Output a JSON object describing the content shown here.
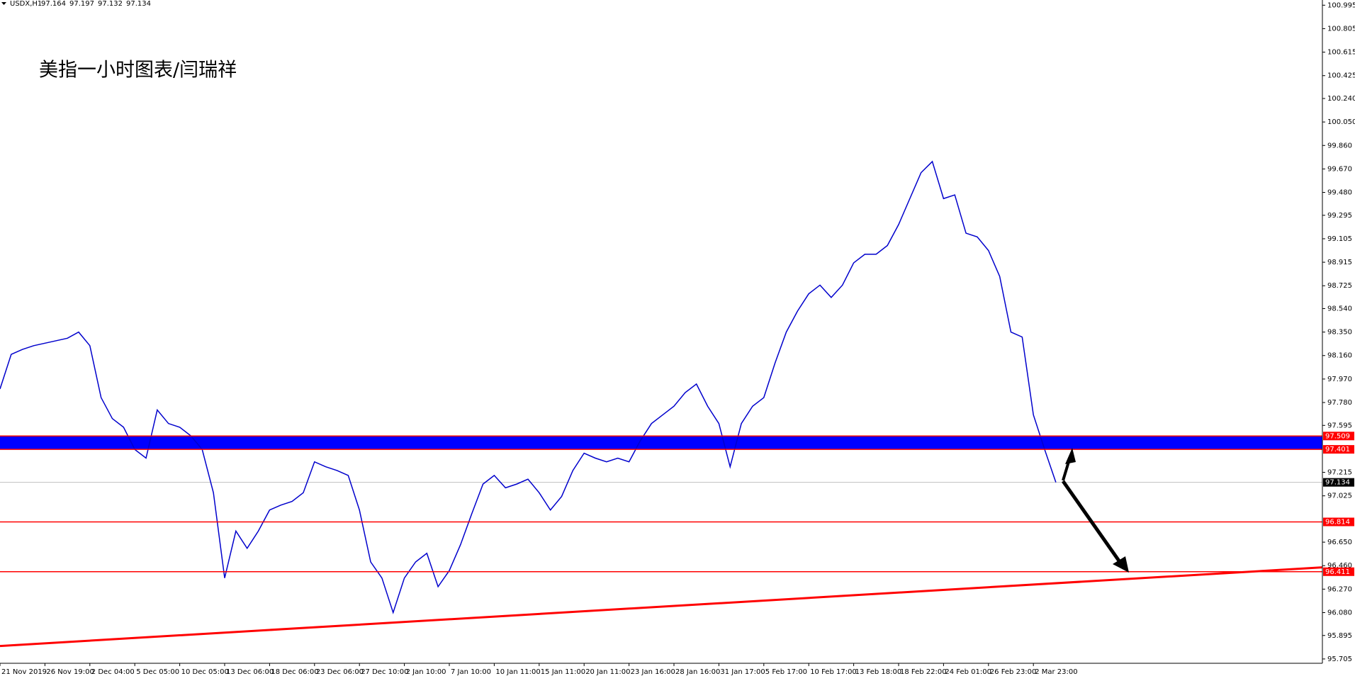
{
  "chart_data": {
    "type": "line",
    "symbol": "USDX,H1",
    "ohlc": [
      97.164,
      97.197,
      97.132,
      97.134
    ],
    "title": "美指一小时图表/闫瑞祥",
    "categories": [
      "21 Nov 2019",
      null,
      null,
      null,
      "26 Nov 19:00",
      null,
      null,
      null,
      "2 Dec 04:00",
      null,
      null,
      null,
      "5 Dec 05:00",
      null,
      null,
      null,
      "10 Dec 05:00",
      null,
      null,
      null,
      "13 Dec 06:00",
      null,
      null,
      null,
      "18 Dec 06:00",
      null,
      null,
      null,
      "23 Dec 06:00",
      null,
      null,
      null,
      "27 Dec 10:00",
      null,
      null,
      null,
      "2 Jan 10:00",
      null,
      null,
      null,
      "7 Jan 10:00",
      null,
      null,
      null,
      "10 Jan 11:00",
      null,
      null,
      null,
      "15 Jan 11:00",
      null,
      null,
      null,
      "20 Jan 11:00",
      null,
      null,
      null,
      "23 Jan 16:00",
      null,
      null,
      null,
      "28 Jan 16:00",
      null,
      null,
      null,
      "31 Jan 17:00",
      null,
      null,
      null,
      "5 Feb 17:00",
      null,
      null,
      null,
      "10 Feb 17:00",
      null,
      null,
      null,
      "13 Feb 18:00",
      null,
      null,
      null,
      "18 Feb 22:00",
      null,
      null,
      null,
      "24 Feb 01:00",
      null,
      null,
      null,
      "26 Feb 23:00",
      null,
      null,
      null,
      "2 Mar 23:00",
      null,
      null
    ],
    "values": [
      97.89,
      98.17,
      98.21,
      98.24,
      98.26,
      98.28,
      98.3,
      98.35,
      98.24,
      97.82,
      97.65,
      97.58,
      97.4,
      97.33,
      97.72,
      97.61,
      97.58,
      97.51,
      97.4,
      97.05,
      96.36,
      96.74,
      96.6,
      96.74,
      96.91,
      96.95,
      96.98,
      97.05,
      97.3,
      97.26,
      97.23,
      97.19,
      96.91,
      96.49,
      96.36,
      96.08,
      96.36,
      96.49,
      96.56,
      96.29,
      96.42,
      96.63,
      96.88,
      97.12,
      97.19,
      97.09,
      97.12,
      97.16,
      97.05,
      96.91,
      97.02,
      97.23,
      97.37,
      97.33,
      97.3,
      97.33,
      97.3,
      97.47,
      97.61,
      97.68,
      97.75,
      97.86,
      97.93,
      97.75,
      97.61,
      97.26,
      97.61,
      97.75,
      97.82,
      98.1,
      98.35,
      98.52,
      98.66,
      98.73,
      98.63,
      98.73,
      98.91,
      98.98,
      98.98,
      99.05,
      99.22,
      99.43,
      99.64,
      99.73,
      99.43,
      99.46,
      99.15,
      99.12,
      99.01,
      98.8,
      98.35,
      98.31,
      97.68,
      97.4,
      97.134
    ],
    "color": "#0000cc",
    "ylim": [
      95.67,
      101.037
    ],
    "yticks": [
      100.995,
      100.805,
      100.615,
      {
        "value": 100.425,
        "label": "100.425"
      },
      {
        "value": 100.24,
        "label": "100.240"
      },
      {
        "value": 100.05,
        "label": "100.050"
      },
      {
        "value": 99.86,
        "label": "99.860"
      },
      {
        "value": 99.67,
        "label": "99.670"
      },
      {
        "value": 99.48,
        "label": "99.480"
      },
      99.295,
      99.105,
      98.915,
      98.725,
      {
        "value": 98.54,
        "label": "98.540"
      },
      {
        "value": 98.35,
        "label": "98.350"
      },
      {
        "value": 98.16,
        "label": "98.160"
      },
      {
        "value": 97.97,
        "label": "97.970"
      },
      {
        "value": 97.78,
        "label": "97.780"
      },
      97.595,
      97.215,
      97.025,
      {
        "value": 96.65,
        "label": "96.650"
      },
      {
        "value": 96.46,
        "label": "96.460"
      },
      {
        "value": 96.27,
        "label": "96.270"
      },
      {
        "value": 96.08,
        "label": "96.080"
      },
      95.895,
      95.705
    ],
    "levels": [
      97.509,
      97.401,
      96.814,
      96.411
    ],
    "level_color": "#ff0000",
    "band_color": "#0000ff",
    "trendline": [
      95.81,
      96.446
    ]
  }
}
